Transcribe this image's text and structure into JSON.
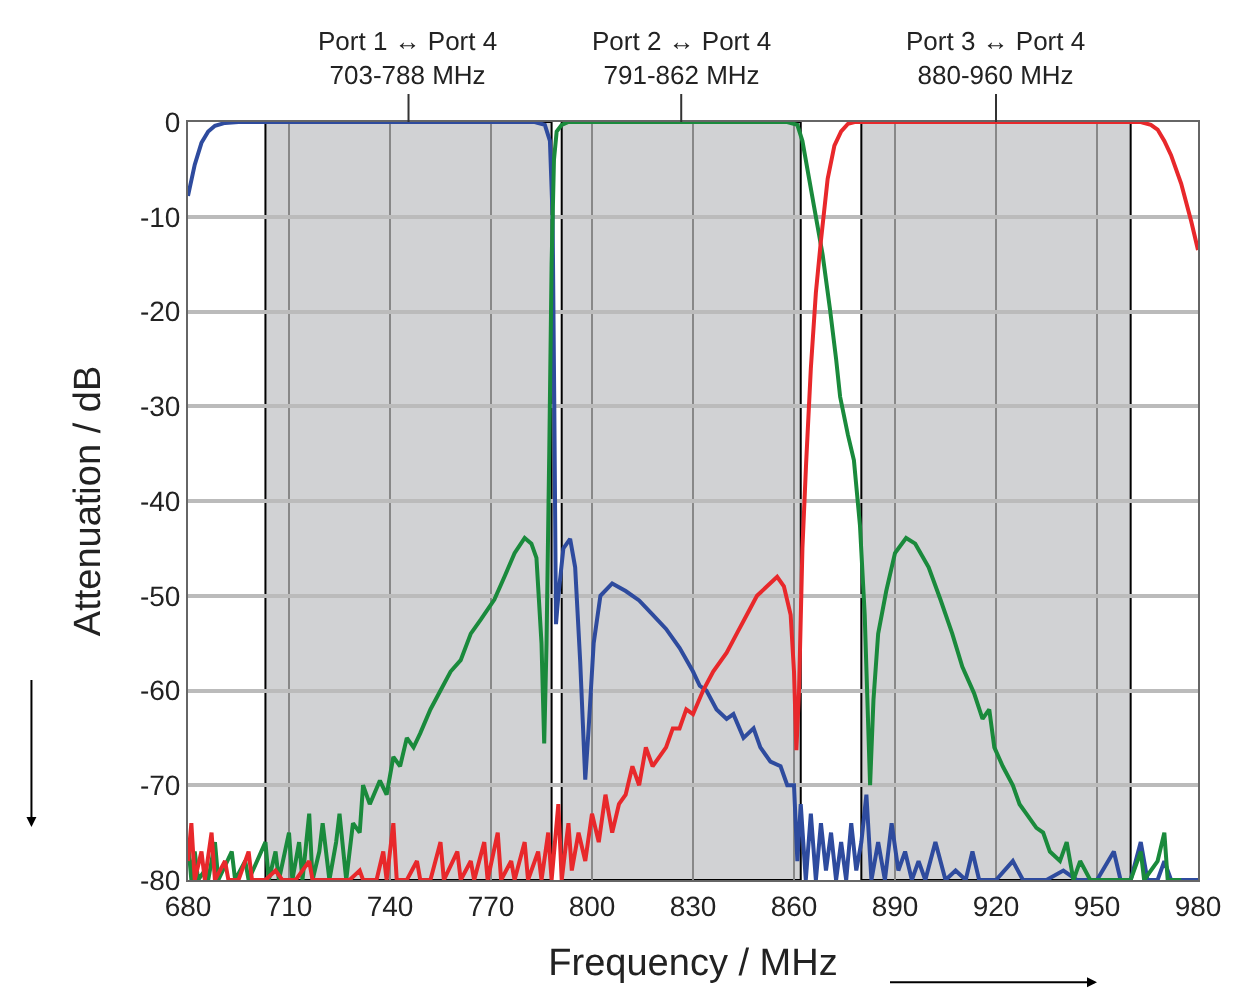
{
  "chart_data": {
    "type": "line",
    "xlabel": "Frequency / MHz",
    "ylabel": "Attenuation / dB",
    "xlim": [
      680,
      980
    ],
    "xticks": [
      680,
      710,
      740,
      770,
      800,
      830,
      860,
      890,
      920,
      950,
      980
    ],
    "ylim": [
      -80,
      0
    ],
    "yticks": [
      -80,
      -70,
      -60,
      -50,
      -40,
      -30,
      -20,
      -10,
      0
    ],
    "grid": true,
    "marker": "none",
    "line_style": "solid",
    "bands": [
      {
        "axis": "x",
        "from": 703,
        "to": 788,
        "label": "Port 1 ↔ Port 4\n703-788 MHz",
        "color": "#d1d2d4"
      },
      {
        "axis": "x",
        "from": 791,
        "to": 862,
        "label": "Port 2 ↔ Port 4\n791-862 MHz",
        "color": "#d1d2d4"
      },
      {
        "axis": "x",
        "from": 880,
        "to": 960,
        "label": "Port 3 ↔ Port 4\n880-960 MHz",
        "color": "#d1d2d4"
      }
    ],
    "series": [
      {
        "color": "#2e4b9e",
        "x": [
          680,
          682,
          684,
          686,
          688,
          691,
          695,
          720,
          760,
          783,
          786,
          787.5,
          788.3,
          788.8,
          789.3,
          790,
          791.5,
          793.5,
          795,
          796.5,
          798,
          799,
          800.5,
          802.5,
          806,
          810,
          814,
          818,
          822,
          826,
          830,
          832,
          834,
          837,
          840,
          842,
          845,
          848,
          850,
          853,
          856,
          858,
          860,
          861,
          862,
          863.5,
          865,
          866.5,
          868,
          869.5,
          871,
          872.5,
          874,
          875.5,
          877,
          878.5,
          880,
          881.5,
          883,
          885,
          887,
          889,
          891,
          893,
          895,
          897,
          899,
          902,
          905,
          908,
          911,
          913,
          915,
          920,
          925,
          928,
          935,
          940,
          944,
          950,
          955,
          957,
          960,
          963,
          965,
          968,
          970,
          972,
          980
        ],
        "values": [
          -7.8,
          -4.5,
          -2.2,
          -1,
          -0.4,
          -0.1,
          0,
          0,
          0,
          0,
          -0.3,
          -2,
          -10,
          -30,
          -53,
          -50,
          -45,
          -44,
          -47,
          -57,
          -69.4,
          -64,
          -55,
          -50,
          -48.7,
          -49.5,
          -50.5,
          -52,
          -53.5,
          -55.5,
          -58,
          -59.5,
          -60,
          -62,
          -63,
          -62.5,
          -65,
          -64,
          -66,
          -67.5,
          -68,
          -70,
          -70,
          -78,
          -72,
          -80,
          -73,
          -80,
          -74,
          -79,
          -75,
          -80,
          -76,
          -80,
          -74,
          -79,
          -76,
          -71,
          -80,
          -76,
          -80,
          -74,
          -79,
          -77,
          -80,
          -78,
          -80,
          -76,
          -80,
          -79,
          -80,
          -77,
          -80,
          -80,
          -78,
          -80,
          -80,
          -79,
          -80,
          -80,
          -77,
          -80,
          -80,
          -76,
          -80,
          -80,
          -78,
          -80,
          -80
        ]
      },
      {
        "color": "#1a8a3c",
        "x": [
          680,
          681,
          682,
          683,
          685,
          686,
          688,
          689,
          693,
          694,
          697,
          698,
          703,
          704,
          706,
          707,
          710,
          711,
          713,
          714,
          716,
          717,
          719,
          720,
          722,
          724,
          725,
          727,
          729,
          731,
          732,
          734,
          737,
          739,
          741,
          743,
          745,
          747,
          749,
          752,
          755,
          758,
          761,
          764,
          767,
          771,
          774,
          777,
          780,
          782,
          783.5,
          785,
          785.8,
          786.5,
          787.3,
          788,
          788.7,
          789.5,
          791,
          793,
          820,
          858,
          861,
          862.5,
          864,
          866,
          868.5,
          870.7,
          872.5,
          873.7,
          876,
          877.8,
          879.6,
          881,
          882.6,
          883.6,
          885,
          887.4,
          890,
          893.3,
          896,
          900,
          903.5,
          907,
          910,
          913.5,
          916,
          918,
          919.5,
          922,
          925,
          927,
          929,
          932,
          934,
          936,
          939,
          941,
          943,
          945,
          948,
          952,
          956,
          960,
          963,
          964,
          968,
          970,
          971,
          975
        ],
        "values": [
          -76,
          -80,
          -77,
          -80,
          -79,
          -80,
          -76,
          -80,
          -77,
          -80,
          -78,
          -80,
          -76,
          -80,
          -77,
          -80,
          -75,
          -80,
          -76,
          -80,
          -73,
          -80,
          -77,
          -74,
          -80,
          -76,
          -73,
          -80,
          -74,
          -75,
          -70,
          -72,
          -69.5,
          -71,
          -67,
          -68,
          -65,
          -66,
          -64.5,
          -62,
          -60,
          -58,
          -56.8,
          -54,
          -52.5,
          -50.4,
          -48,
          -45.5,
          -43.9,
          -44.5,
          -46,
          -55,
          -65.6,
          -55,
          -35,
          -15,
          -4,
          -1,
          -0.3,
          0,
          0,
          0,
          -0.3,
          -2,
          -5,
          -9,
          -14,
          -19.8,
          -25,
          -29,
          -33,
          -35.7,
          -42.6,
          -52,
          -70,
          -61,
          -54,
          -49.5,
          -45.5,
          -43.9,
          -44.5,
          -47,
          -50.4,
          -54,
          -57.5,
          -60.3,
          -63,
          -62,
          -66,
          -68,
          -70,
          -72,
          -73,
          -74.5,
          -75,
          -77,
          -78,
          -76,
          -80,
          -78,
          -80,
          -80,
          -80,
          -80,
          -77,
          -80,
          -78,
          -75,
          -80,
          -80
        ]
      },
      {
        "color": "#e8282b",
        "x": [
          680,
          681,
          682,
          684,
          685,
          687,
          688,
          691,
          692,
          695,
          698,
          699,
          703,
          706,
          708,
          712,
          716,
          717,
          722,
          728,
          731,
          732,
          736,
          738,
          739,
          741,
          742,
          745,
          748,
          749,
          752,
          755,
          756,
          760,
          761,
          764,
          765,
          768,
          769,
          772,
          773,
          776,
          777,
          780,
          781,
          784,
          785,
          787,
          788,
          790,
          791,
          793,
          794,
          796,
          798,
          800,
          802,
          804,
          806,
          808,
          810,
          812,
          814,
          816,
          818,
          820,
          822,
          824,
          826,
          828,
          830,
          833,
          836,
          840,
          843,
          846,
          849,
          852,
          855,
          857,
          859,
          860,
          860.7,
          861.5,
          862.5,
          863.6,
          865,
          866.5,
          868,
          870,
          872,
          874,
          876,
          878,
          900,
          940,
          963,
          966,
          968,
          970,
          972,
          975,
          978,
          980
        ],
        "values": [
          -78,
          -74,
          -80,
          -77,
          -80,
          -75,
          -80,
          -78,
          -80,
          -80,
          -77,
          -80,
          -80,
          -79,
          -80,
          -80,
          -78,
          -80,
          -80,
          -80,
          -79,
          -80,
          -80,
          -77,
          -80,
          -74,
          -80,
          -80,
          -78,
          -80,
          -80,
          -76,
          -80,
          -77,
          -80,
          -78,
          -80,
          -76,
          -80,
          -75,
          -80,
          -78,
          -80,
          -76,
          -80,
          -77,
          -80,
          -75,
          -80,
          -72,
          -80,
          -74,
          -79,
          -75,
          -78,
          -73,
          -76,
          -71,
          -75,
          -72,
          -71,
          -68,
          -70,
          -66,
          -68,
          -67,
          -66,
          -64,
          -64,
          -62,
          -62.5,
          -60,
          -58,
          -56,
          -54,
          -52,
          -50,
          -49,
          -48,
          -49,
          -52,
          -58,
          -66.3,
          -60,
          -45,
          -36,
          -26,
          -18,
          -12.5,
          -6,
          -2.5,
          -1,
          -0.2,
          0,
          0,
          0,
          0,
          -0.3,
          -0.8,
          -2,
          -3.5,
          -6.5,
          -10.5,
          -13.5
        ]
      }
    ]
  }
}
